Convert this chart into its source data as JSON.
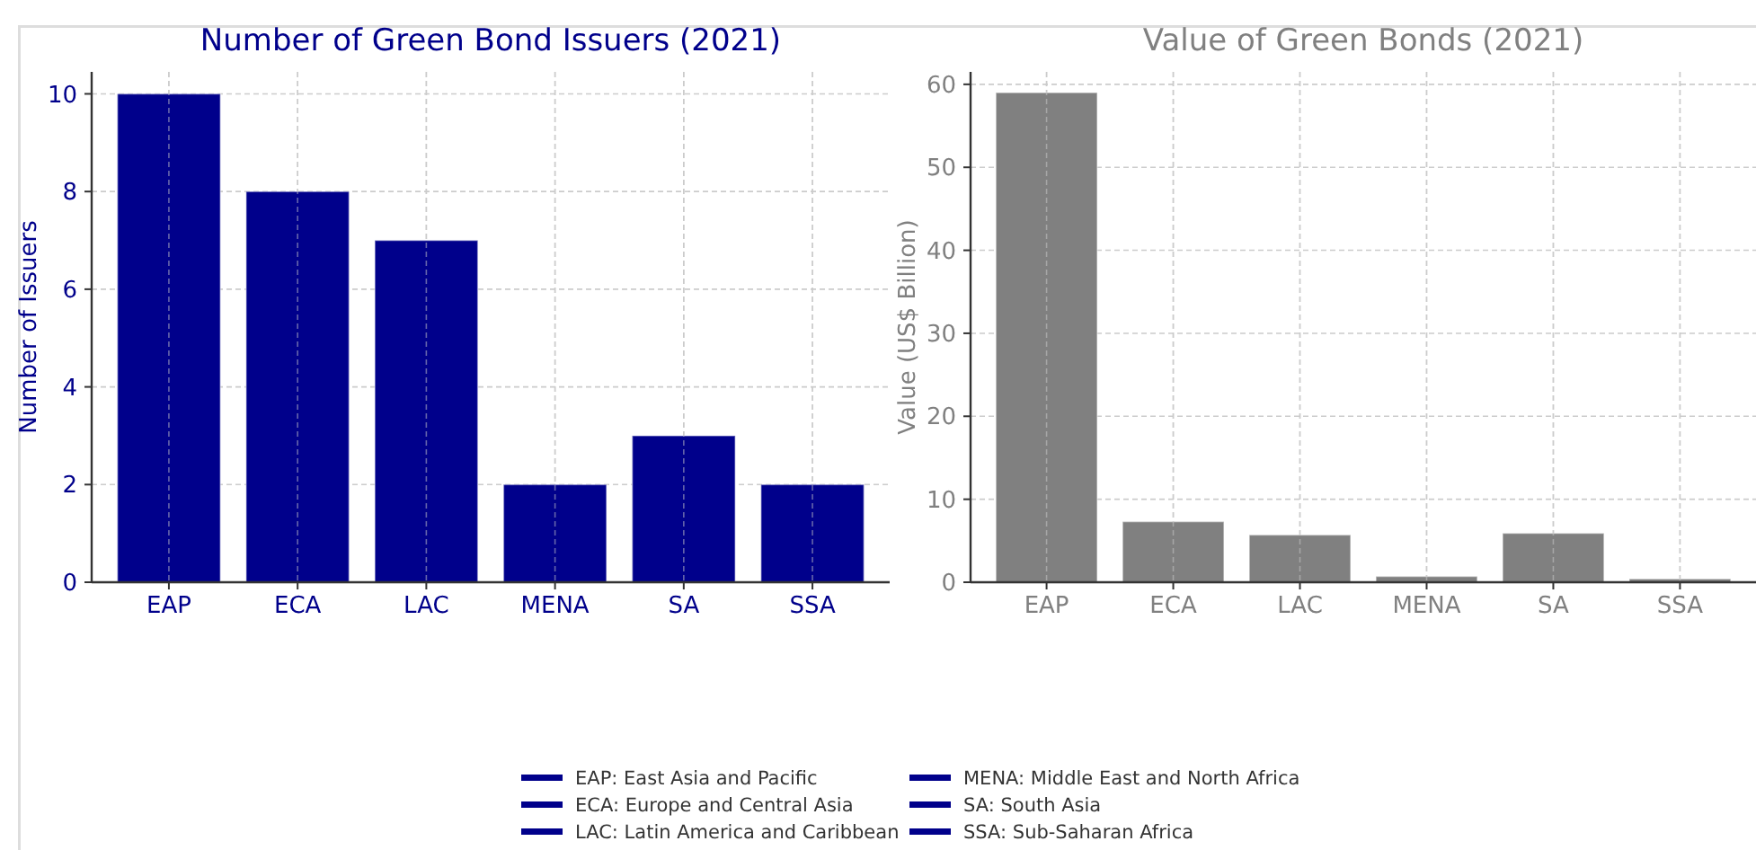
{
  "chart_data": [
    {
      "type": "bar",
      "title": "Number of Green Bond Issuers (2021)",
      "ylabel": "Number of Issuers",
      "categories": [
        "EAP",
        "ECA",
        "LAC",
        "MENA",
        "SA",
        "SSA"
      ],
      "values": [
        10,
        8,
        7,
        2,
        3,
        2
      ],
      "color": "#00008b",
      "ylim": [
        0,
        10.45
      ],
      "yticks": [
        0,
        2,
        4,
        6,
        8,
        10
      ],
      "grid": true,
      "annotations": [
        "EAP: East Asia and Pacific",
        "ECA: Europe and Central Asia",
        "LAC: Latin America and Caribbean",
        "MENA: Middle East and North Africa",
        "SA: South Asia",
        "SSA: Sub-Saharan Africa"
      ]
    },
    {
      "type": "bar",
      "title": "Value of Green Bonds (2021)",
      "ylabel": "Value (US$ Billion)",
      "categories": [
        "EAP",
        "ECA",
        "LAC",
        "MENA",
        "SA",
        "SSA"
      ],
      "values": [
        59,
        7.3,
        5.7,
        0.7,
        5.9,
        0.4
      ],
      "color": "#808080",
      "ylim": [
        0,
        61.5
      ],
      "yticks": [
        0,
        10,
        20,
        30,
        40,
        50,
        60
      ],
      "grid": true
    }
  ]
}
